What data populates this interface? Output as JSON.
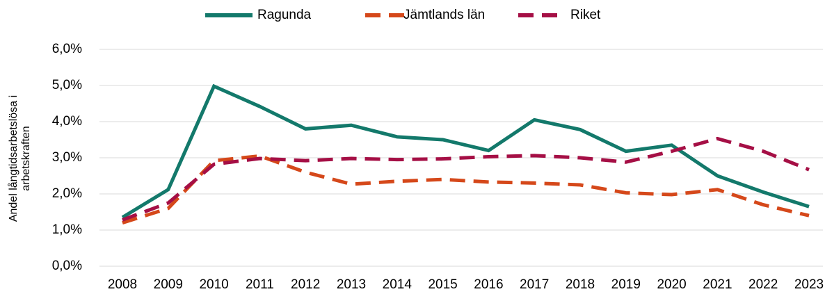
{
  "chart_data": {
    "type": "line",
    "ylabel": [
      "Andel långtidsarbetslösa i",
      "arbetskraften"
    ],
    "categories": [
      "2008",
      "2009",
      "2010",
      "2011",
      "2012",
      "2013",
      "2014",
      "2015",
      "2016",
      "2017",
      "2018",
      "2019",
      "2020",
      "2021",
      "2022",
      "2023"
    ],
    "series": [
      {
        "name": "Ragunda",
        "color": "#13796b",
        "dash": false,
        "values": [
          1.35,
          2.12,
          4.98,
          4.42,
          3.8,
          3.9,
          3.58,
          3.5,
          3.2,
          4.05,
          3.78,
          3.18,
          3.35,
          2.5,
          2.05,
          1.65
        ]
      },
      {
        "name": "Jämtlands län",
        "color": "#d5481a",
        "dash": true,
        "values": [
          1.2,
          1.6,
          2.92,
          3.05,
          2.6,
          2.27,
          2.35,
          2.4,
          2.33,
          2.3,
          2.25,
          2.03,
          1.98,
          2.12,
          1.7,
          1.4
        ]
      },
      {
        "name": "Riket",
        "color": "#a50f45",
        "dash": true,
        "values": [
          1.28,
          1.75,
          2.82,
          2.98,
          2.92,
          2.98,
          2.95,
          2.97,
          3.03,
          3.06,
          3.0,
          2.88,
          3.18,
          3.53,
          3.18,
          2.67
        ]
      }
    ],
    "ylim": [
      0,
      6
    ],
    "yticks": [
      {
        "value": 0,
        "label": "0,0%"
      },
      {
        "value": 1,
        "label": "1,0%"
      },
      {
        "value": 2,
        "label": "2,0%"
      },
      {
        "value": 3,
        "label": "3,0%"
      },
      {
        "value": 4,
        "label": "4,0%"
      },
      {
        "value": 5,
        "label": "5,0%"
      },
      {
        "value": 6,
        "label": "6,0%"
      }
    ],
    "grid": true,
    "legend": "top"
  }
}
